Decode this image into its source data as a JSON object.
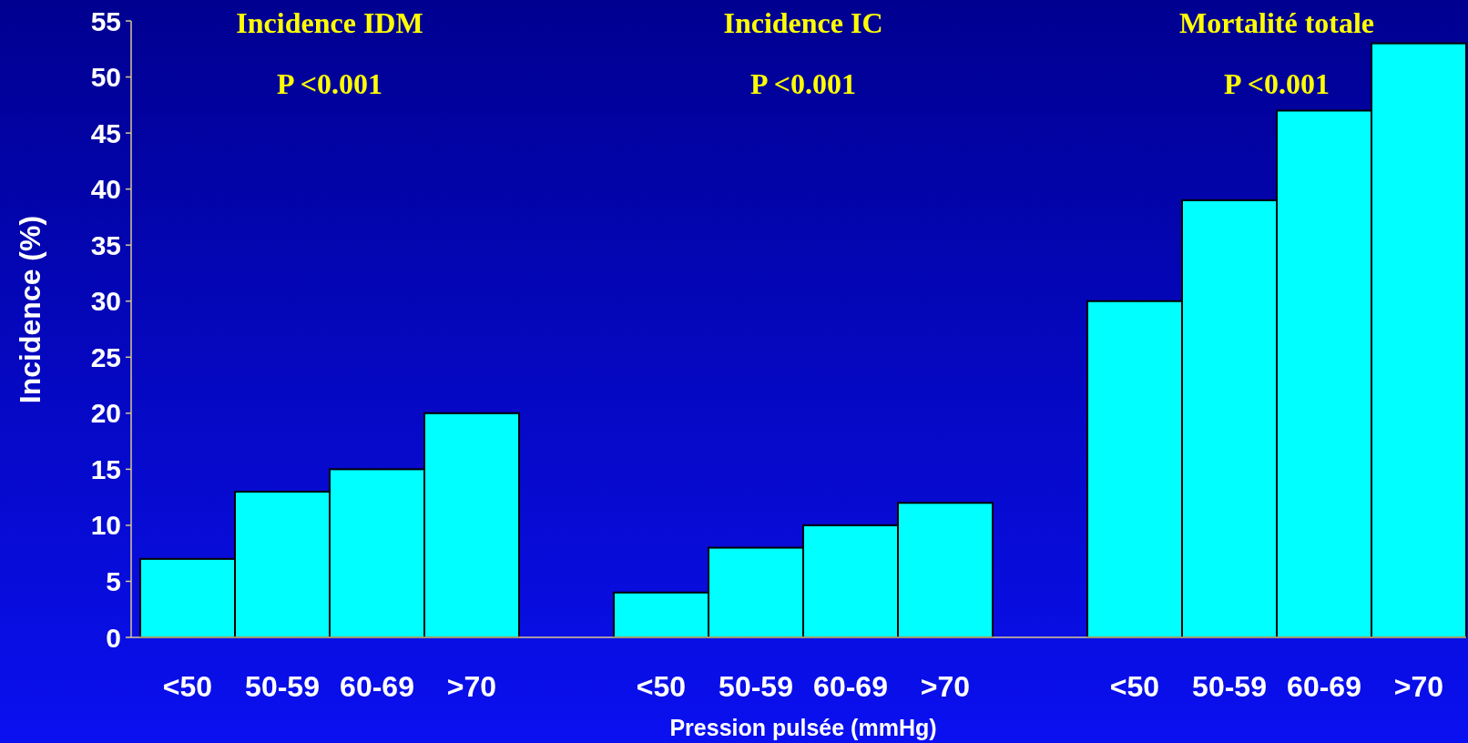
{
  "chart_data": {
    "type": "bar",
    "xlabel": "Pression pulsée (mmHg)",
    "ylabel": "Incidence (%)",
    "categories": [
      "<50",
      "50-59",
      "60-69",
      ">70",
      null,
      "<50",
      "50-59",
      "60-69",
      ">70",
      null,
      "<50",
      "50-59",
      "60-69",
      ">70"
    ],
    "values": [
      7,
      13,
      15,
      20,
      null,
      4,
      8,
      10,
      12,
      null,
      30,
      39,
      47,
      53
    ],
    "color": "#00ffff",
    "ylim": [
      0,
      55
    ],
    "yticks": [
      0,
      5,
      10,
      15,
      20,
      25,
      30,
      35,
      40,
      45,
      50,
      55
    ],
    "annotations": [
      "Incidence IDM",
      "P <0.001",
      "Incidence IC",
      "P <0.001",
      "Mortalité totale",
      "P <0.001"
    ]
  }
}
